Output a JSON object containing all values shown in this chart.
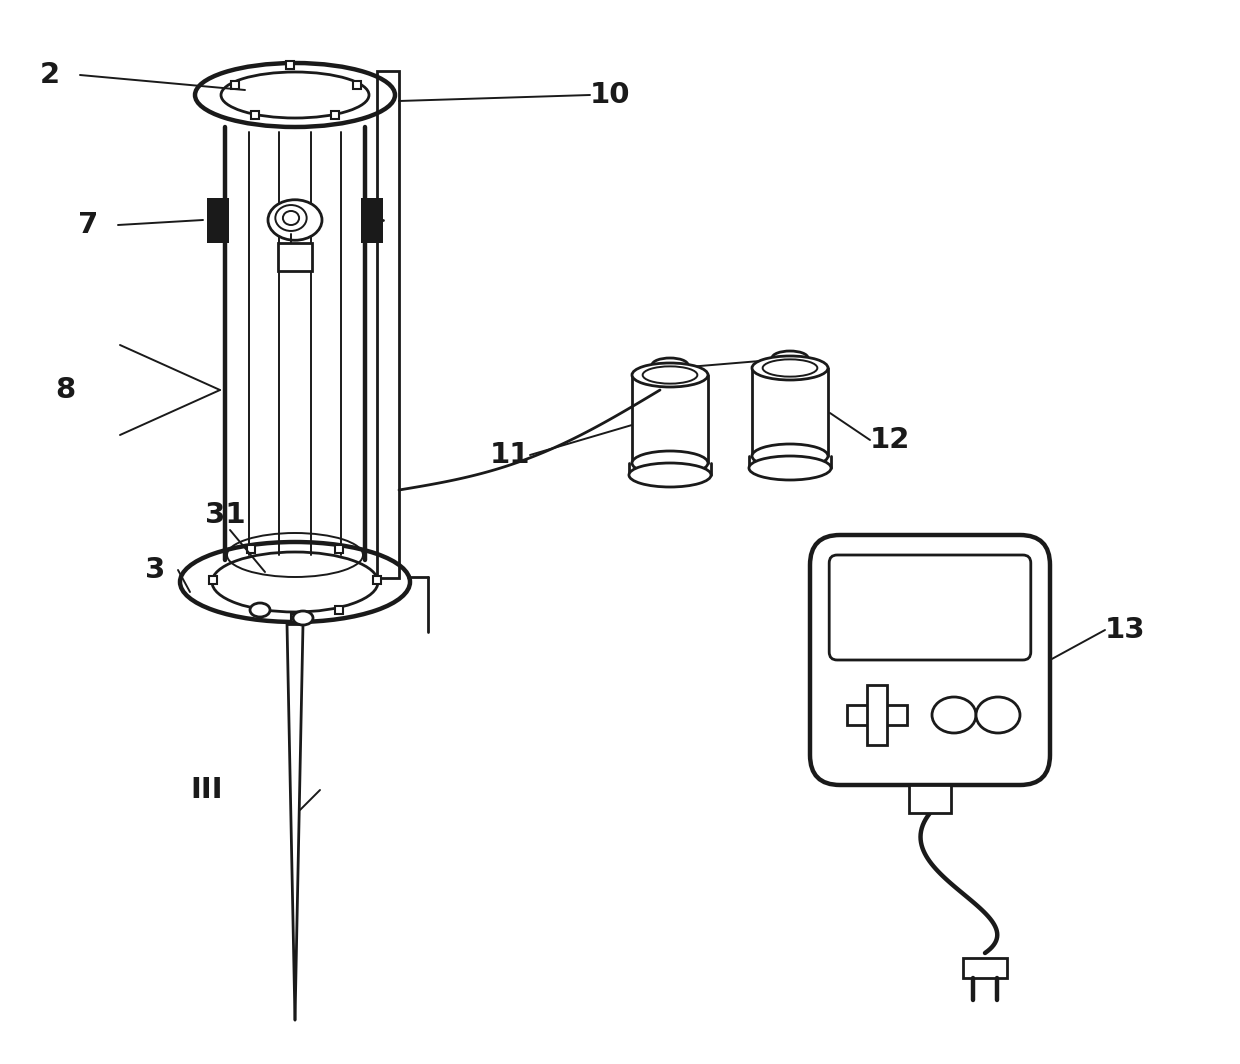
{
  "bg_color": "#ffffff",
  "line_color": "#1a1a1a",
  "lw": 2.0,
  "lw_thick": 3.2,
  "lw_thin": 1.4,
  "font_size": 21,
  "figsize": [
    12.4,
    10.64
  ],
  "dpi": 100
}
